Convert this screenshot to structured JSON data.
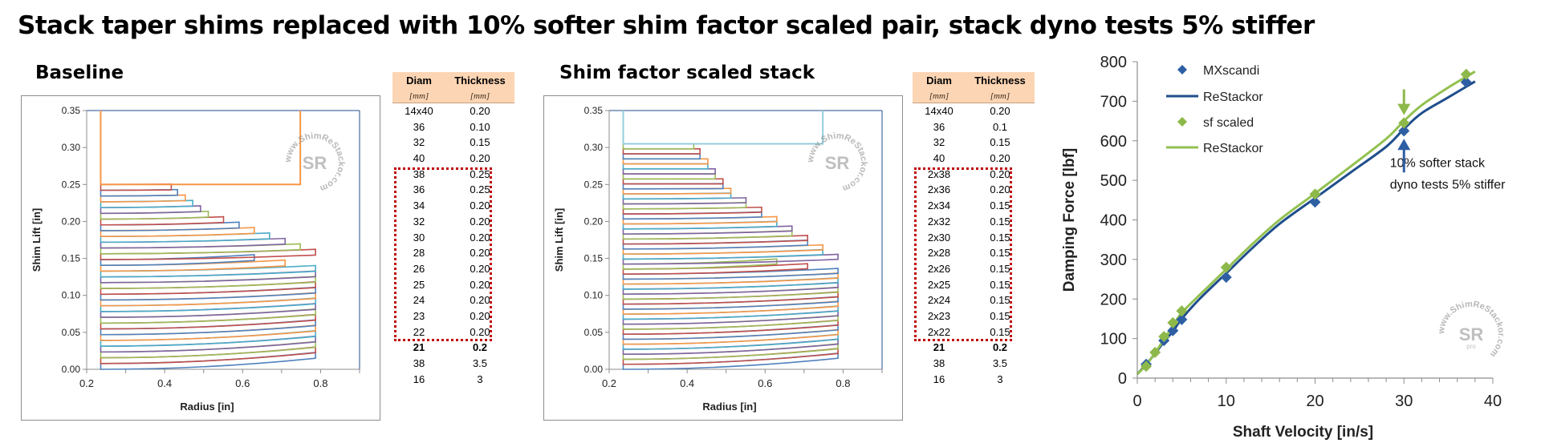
{
  "title": "Stack taper shims replaced with 10% softer shim factor scaled pair, stack dyno tests 5% stiffer",
  "colors": {
    "table_header_bg": "#fcd5b4",
    "highlight_box": "#c00000",
    "mx_blue": "#2e5fa3",
    "restackor_blue": "#1f4e8c",
    "sf_green": "#8db84a",
    "restackor_green": "#92c050",
    "clamp_orange": "#f79646",
    "clamp_lightblue": "#93cddd"
  },
  "left_panel": {
    "subtitle": "Baseline",
    "table": {
      "headers": [
        "Diam",
        "Thickness"
      ],
      "units": [
        "[mm]",
        "[mm]"
      ],
      "rows": [
        {
          "diam": "14x40",
          "thickness": "0.20"
        },
        {
          "diam": "36",
          "thickness": "0.10"
        },
        {
          "diam": "32",
          "thickness": "0.15"
        },
        {
          "diam": "40",
          "thickness": "0.20"
        },
        {
          "diam": "38",
          "thickness": "0.25"
        },
        {
          "diam": "36",
          "thickness": "0.25"
        },
        {
          "diam": "34",
          "thickness": "0.20"
        },
        {
          "diam": "32",
          "thickness": "0.20"
        },
        {
          "diam": "30",
          "thickness": "0.20"
        },
        {
          "diam": "28",
          "thickness": "0.20"
        },
        {
          "diam": "26",
          "thickness": "0.20"
        },
        {
          "diam": "25",
          "thickness": "0.20"
        },
        {
          "diam": "24",
          "thickness": "0.20"
        },
        {
          "diam": "23",
          "thickness": "0.20"
        },
        {
          "diam": "22",
          "thickness": "0.20"
        },
        {
          "diam": "21",
          "thickness": "0.2"
        },
        {
          "diam": "38",
          "thickness": "3.5"
        },
        {
          "diam": "16",
          "thickness": "3"
        }
      ],
      "highlighted_rows": [
        4,
        14
      ],
      "bold_rows": [
        15
      ]
    }
  },
  "middle_panel": {
    "subtitle": "Shim factor scaled stack",
    "table": {
      "headers": [
        "Diam",
        "Thickness"
      ],
      "units": [
        "[mm]",
        "[mm]"
      ],
      "rows": [
        {
          "diam": "14x40",
          "thickness": "0.20"
        },
        {
          "diam": "36",
          "thickness": "0.1"
        },
        {
          "diam": "32",
          "thickness": "0.15"
        },
        {
          "diam": "40",
          "thickness": "0.20"
        },
        {
          "diam": "2x38",
          "thickness": "0.20"
        },
        {
          "diam": "2x36",
          "thickness": "0.20"
        },
        {
          "diam": "2x34",
          "thickness": "0.15"
        },
        {
          "diam": "2x32",
          "thickness": "0.15"
        },
        {
          "diam": "2x30",
          "thickness": "0.15"
        },
        {
          "diam": "2x28",
          "thickness": "0.15"
        },
        {
          "diam": "2x26",
          "thickness": "0.15"
        },
        {
          "diam": "2x25",
          "thickness": "0.15"
        },
        {
          "diam": "2x24",
          "thickness": "0.15"
        },
        {
          "diam": "2x23",
          "thickness": "0.15"
        },
        {
          "diam": "2x22",
          "thickness": "0.15"
        },
        {
          "diam": "21",
          "thickness": "0.2"
        },
        {
          "diam": "38",
          "thickness": "3.5"
        },
        {
          "diam": "16",
          "thickness": "3"
        }
      ],
      "highlighted_rows": [
        4,
        14
      ],
      "bold_rows": [
        15
      ]
    }
  },
  "watermark": "www.ShimReStackor.com",
  "watermark_logo": "SR",
  "chart_data": [
    {
      "type": "line",
      "title": "Baseline",
      "xlabel": "Radius [in]",
      "ylabel": "Shim Lift [in]",
      "xlim": [
        0.2,
        0.9
      ],
      "ylim": [
        0.0,
        0.35
      ],
      "xticks": [
        "0.2",
        "0.4",
        "0.6",
        "0.8"
      ],
      "yticks": [
        "0.00",
        "0.05",
        "0.10",
        "0.15",
        "0.20",
        "0.25",
        "0.30",
        "0.35"
      ],
      "grid": false,
      "description": "Deflected shim stack profile; each shim drawn as an outlined band from inner radius 0.236 in to its outer radius, stacked by thickness, colored cyclically.",
      "clamp": {
        "r_out": 0.748,
        "y_bottom": 0.25,
        "y_top": 0.35,
        "color": "#f79646"
      },
      "shim_outer_radius_top_to_bottom": [
        0.417,
        0.433,
        0.453,
        0.472,
        0.492,
        0.512,
        0.551,
        0.591,
        0.63,
        0.669,
        0.709,
        0.748,
        0.787,
        0.63,
        0.709,
        0.787,
        0.787,
        0.787,
        0.787,
        0.787,
        0.787,
        0.787,
        0.787,
        0.787,
        0.787,
        0.787,
        0.787,
        0.787,
        0.787,
        0.787,
        0.787,
        0.787
      ]
    },
    {
      "type": "line",
      "title": "Shim factor scaled stack",
      "xlabel": "Radius [in]",
      "ylabel": "Shim Lift [in]",
      "xlim": [
        0.2,
        0.9
      ],
      "ylim": [
        0.0,
        0.35
      ],
      "xticks": [
        "0.2",
        "0.4",
        "0.6",
        "0.8"
      ],
      "yticks": [
        "0.00",
        "0.05",
        "0.10",
        "0.15",
        "0.20",
        "0.25",
        "0.30",
        "0.35"
      ],
      "grid": false,
      "description": "Deflected shim stack profile with taper shims replaced by scaled pairs.",
      "clamp": {
        "r_out": 0.748,
        "y_bottom": 0.305,
        "y_top": 0.35,
        "color": "#93cddd"
      },
      "shim_outer_radius_top_to_bottom": [
        0.417,
        0.433,
        0.433,
        0.453,
        0.453,
        0.472,
        0.472,
        0.492,
        0.492,
        0.512,
        0.512,
        0.551,
        0.551,
        0.591,
        0.591,
        0.63,
        0.63,
        0.669,
        0.669,
        0.709,
        0.709,
        0.748,
        0.748,
        0.787,
        0.63,
        0.709,
        0.787,
        0.787,
        0.787,
        0.787,
        0.787,
        0.787,
        0.787,
        0.787,
        0.787,
        0.787,
        0.787,
        0.787,
        0.787,
        0.787,
        0.787,
        0.787,
        0.787,
        0.787,
        0.787
      ]
    },
    {
      "type": "scatter",
      "title": "",
      "xlabel": "Shaft Velocity [in/s]",
      "ylabel": "Damping Force [lbf]",
      "xlim": [
        0,
        40
      ],
      "ylim": [
        0,
        800
      ],
      "xticks": [
        "0",
        "10",
        "20",
        "30",
        "40"
      ],
      "yticks": [
        "0",
        "100",
        "200",
        "300",
        "400",
        "500",
        "600",
        "700",
        "800"
      ],
      "grid": false,
      "legend_position": "upper-left",
      "series": [
        {
          "name": "MXscandi",
          "kind": "markers",
          "marker": "diamond",
          "color": "#2e5fa3",
          "x": [
            1,
            3,
            4,
            5,
            10,
            20,
            30,
            37
          ],
          "y": [
            35,
            95,
            120,
            148,
            255,
            445,
            625,
            748
          ]
        },
        {
          "name": "ReStackor",
          "kind": "line",
          "color": "#1f4e8c",
          "x": [
            0,
            1,
            2,
            3,
            4,
            5,
            7,
            10,
            13,
            16,
            20,
            24,
            28,
            30,
            32,
            35,
            38
          ],
          "y": [
            10,
            35,
            62,
            92,
            118,
            150,
            200,
            265,
            330,
            390,
            455,
            520,
            585,
            630,
            670,
            710,
            750
          ]
        },
        {
          "name": "sf scaled",
          "kind": "markers",
          "marker": "diamond",
          "color": "#8db84a",
          "x": [
            1,
            2,
            3,
            4,
            5,
            10,
            20,
            30,
            37
          ],
          "y": [
            30,
            65,
            105,
            140,
            170,
            280,
            465,
            645,
            768
          ]
        },
        {
          "name": "ReStackor",
          "kind": "line",
          "color": "#92c050",
          "x": [
            0,
            1,
            2,
            3,
            4,
            5,
            7,
            10,
            13,
            16,
            20,
            24,
            28,
            30,
            32,
            35,
            38
          ],
          "y": [
            10,
            33,
            64,
            98,
            132,
            165,
            210,
            275,
            340,
            400,
            467,
            535,
            605,
            650,
            690,
            735,
            775
          ]
        }
      ],
      "annotations": [
        {
          "text": "10% softer stack",
          "x": 29.5,
          "y": 540
        },
        {
          "text": "dyno tests 5% stiffer",
          "x": 29.5,
          "y": 485
        },
        {
          "type": "arrow",
          "direction": "down",
          "x": 30,
          "y_from": 730,
          "y_to": 665,
          "color": "#8db84a"
        },
        {
          "type": "arrow",
          "direction": "up",
          "x": 30,
          "y_from": 520,
          "y_to": 605,
          "color": "#2e5fa3"
        }
      ]
    }
  ]
}
